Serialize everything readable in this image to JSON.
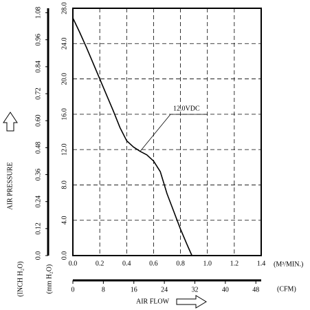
{
  "chart_data": {
    "type": "line",
    "ylabel": "AIR PRESSURE",
    "yunit": "(mm H₂O)",
    "y2unit": "(INCH H₂O)",
    "xlabel": "AIR FLOW",
    "xunit": "(M³/MIN.)",
    "x2unit": "(CFM)",
    "x": [
      0,
      0.05,
      0.1,
      0.15,
      0.2,
      0.25,
      0.3,
      0.35,
      0.4,
      0.45,
      0.5,
      0.55,
      0.6,
      0.65,
      0.7,
      0.75,
      0.8,
      0.85,
      0.885
    ],
    "series": [
      {
        "name": "12.0VDC",
        "color": "#000000",
        "values": [
          26.9,
          25.3,
          23.6,
          21.8,
          20.0,
          18.2,
          16.4,
          14.5,
          13.0,
          12.3,
          11.8,
          11.4,
          10.7,
          9.5,
          7.0,
          5.0,
          3.0,
          1.2,
          0
        ]
      }
    ],
    "xlim": [
      0,
      1.4
    ],
    "xticks": [
      {
        "value": 0,
        "label": "0.0"
      },
      0.2,
      0.4,
      0.6,
      0.8,
      {
        "value": 1,
        "label": "1.0"
      },
      1.2,
      1.4
    ],
    "ylim": [
      0,
      28
    ],
    "yticks": [
      {
        "value": 0,
        "label": "0.0"
      },
      {
        "value": 4,
        "label": "4.0"
      },
      {
        "value": 8,
        "label": "8.0"
      },
      {
        "value": 12,
        "label": "12.0"
      },
      {
        "value": 16,
        "label": "16.0"
      },
      {
        "value": 20,
        "label": "20.0"
      },
      {
        "value": 24,
        "label": "24.0"
      },
      {
        "value": 28,
        "label": "28.0"
      }
    ],
    "y2lim": [
      0,
      1.1
    ],
    "y2ticks": [
      {
        "value": 0,
        "label": "0.0"
      },
      0.12,
      0.24,
      0.36,
      0.48,
      {
        "value": 0.6,
        "label": "0.60"
      },
      0.72,
      0.84,
      0.96,
      1.08
    ],
    "x2lim": [
      0,
      49.4
    ],
    "x2ticks": [
      0,
      8,
      16,
      24,
      32,
      40,
      48
    ],
    "grid": true
  }
}
